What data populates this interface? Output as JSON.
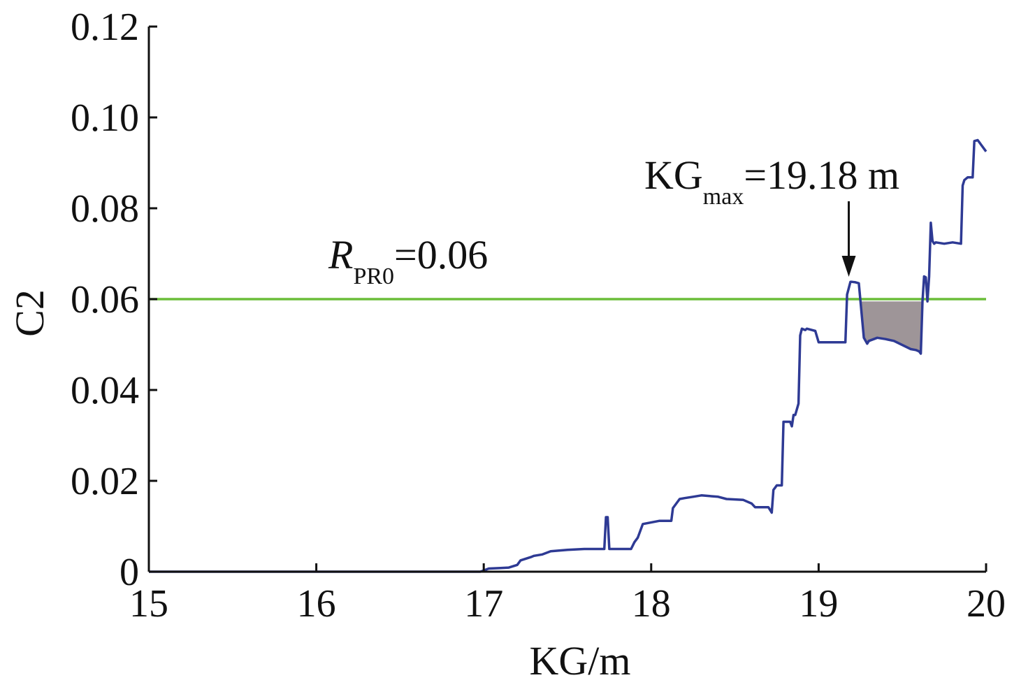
{
  "chart_data": {
    "type": "line",
    "title": "",
    "xlabel": "KG/m",
    "ylabel": "C2",
    "xlim": [
      15,
      20
    ],
    "ylim": [
      0,
      0.12
    ],
    "x_ticks": [
      15,
      16,
      17,
      18,
      19,
      20
    ],
    "x_tick_labels": [
      "15",
      "16",
      "17",
      "18",
      "19",
      "20"
    ],
    "y_ticks": [
      0,
      0.02,
      0.04,
      0.06,
      0.08,
      0.1,
      0.12
    ],
    "y_tick_labels": [
      "0",
      "0.02",
      "0.04",
      "0.06",
      "0.08",
      "0.10",
      "0.12"
    ],
    "grid": false,
    "legend": "none",
    "colors": {
      "series": "#2e3a94",
      "threshold": "#6bbd3a",
      "shade": "#9e9598",
      "axis": "#111111"
    },
    "threshold": {
      "value": 0.06,
      "label_main": "R",
      "label_sub": "PR0",
      "label_rest": "=0.06"
    },
    "annotation": {
      "x": 19.18,
      "y": 0.064,
      "label_main": "KG",
      "label_sub": "max",
      "label_rest": "=19.18 m"
    },
    "shaded_region": {
      "x_start": 19.25,
      "x_end": 19.62,
      "upper": 0.0595
    },
    "series": [
      {
        "x": [
          15.0,
          16.98,
          17.03,
          17.1,
          17.15,
          17.2,
          17.22,
          17.28,
          17.3,
          17.35,
          17.4,
          17.5,
          17.6,
          17.72,
          17.73,
          17.74,
          17.75,
          17.76,
          17.8,
          17.88,
          17.9,
          17.92,
          17.93,
          17.95,
          18.05,
          18.12,
          18.13,
          18.15,
          18.17,
          18.2,
          18.25,
          18.3,
          18.4,
          18.45,
          18.55,
          18.6,
          18.62,
          18.7,
          18.72,
          18.73,
          18.74,
          18.75,
          18.78,
          18.79,
          18.83,
          18.84,
          18.85,
          18.86,
          18.88,
          18.89,
          18.9,
          18.92,
          18.93,
          18.96,
          18.98,
          19.0,
          19.05,
          19.15,
          19.16,
          19.17,
          19.19,
          19.2,
          19.22,
          19.24,
          19.25,
          19.27,
          19.29,
          19.3,
          19.35,
          19.4,
          19.45,
          19.55,
          19.58,
          19.6,
          19.61,
          19.62,
          19.63,
          19.64,
          19.65,
          19.66,
          19.67,
          19.68,
          19.69,
          19.7,
          19.75,
          19.8,
          19.85,
          19.86,
          19.87,
          19.89,
          19.9,
          19.92,
          19.93,
          19.95,
          19.96,
          19.97,
          20.0
        ],
        "y": [
          0.0,
          0.0,
          0.0007,
          0.0008,
          0.0009,
          0.0015,
          0.0025,
          0.0032,
          0.0035,
          0.0038,
          0.0045,
          0.0048,
          0.005,
          0.005,
          0.012,
          0.012,
          0.005,
          0.005,
          0.005,
          0.005,
          0.0065,
          0.0075,
          0.0085,
          0.0105,
          0.0112,
          0.0112,
          0.014,
          0.015,
          0.016,
          0.0162,
          0.0165,
          0.0168,
          0.0165,
          0.016,
          0.0158,
          0.015,
          0.0142,
          0.0142,
          0.013,
          0.018,
          0.0185,
          0.019,
          0.019,
          0.033,
          0.033,
          0.032,
          0.0345,
          0.0345,
          0.037,
          0.052,
          0.0535,
          0.0532,
          0.0535,
          0.0532,
          0.053,
          0.0505,
          0.0505,
          0.0505,
          0.0505,
          0.061,
          0.0638,
          0.0638,
          0.0637,
          0.0635,
          0.0595,
          0.0515,
          0.0502,
          0.0508,
          0.0515,
          0.0512,
          0.0508,
          0.049,
          0.0488,
          0.0485,
          0.048,
          0.0595,
          0.065,
          0.0648,
          0.0595,
          0.065,
          0.0768,
          0.0728,
          0.0722,
          0.0725,
          0.0722,
          0.0725,
          0.0722,
          0.085,
          0.0862,
          0.0868,
          0.0868,
          0.0868,
          0.0948,
          0.095,
          0.0945,
          0.094,
          0.0925
        ]
      }
    ]
  }
}
